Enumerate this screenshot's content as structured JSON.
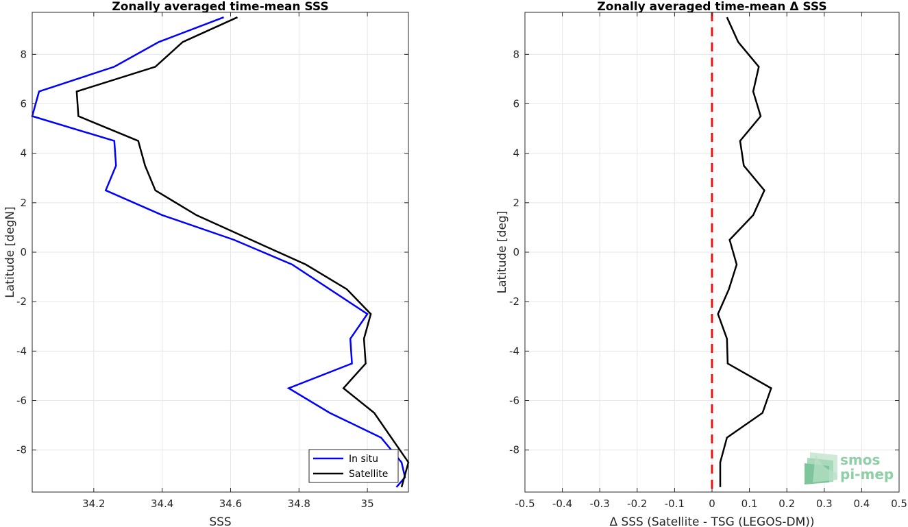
{
  "chart_data": [
    {
      "type": "line",
      "title": "Zonally averaged time-mean SSS",
      "xlabel": "SSS",
      "ylabel": "Latitude [degN]",
      "xlim": [
        34.02,
        35.12
      ],
      "ylim": [
        -9.7,
        9.7
      ],
      "xticks": [
        34.2,
        34.4,
        34.6,
        34.8,
        35
      ],
      "xtick_labels": [
        "34.2",
        "34.4",
        "34.6",
        "34.8",
        "35"
      ],
      "yticks": [
        -8,
        -6,
        -4,
        -2,
        0,
        2,
        4,
        6,
        8
      ],
      "ytick_labels": [
        "-8",
        "-6",
        "-4",
        "-2",
        "0",
        "2",
        "4",
        "6",
        "8"
      ],
      "grid": true,
      "legend_position": "bottom-right",
      "series": [
        {
          "name": "In situ",
          "color": "#0000ff",
          "points": [
            [
              34.58,
              9.5
            ],
            [
              34.39,
              8.5
            ],
            [
              34.26,
              7.5
            ],
            [
              34.04,
              6.5
            ],
            [
              34.02,
              5.5
            ],
            [
              34.26,
              4.5
            ],
            [
              34.265,
              3.5
            ],
            [
              34.235,
              2.5
            ],
            [
              34.4,
              1.5
            ],
            [
              34.61,
              0.5
            ],
            [
              34.78,
              -0.5
            ],
            [
              34.89,
              -1.5
            ],
            [
              35.0,
              -2.5
            ],
            [
              34.95,
              -3.5
            ],
            [
              34.955,
              -4.5
            ],
            [
              34.77,
              -5.5
            ],
            [
              34.89,
              -6.5
            ],
            [
              35.04,
              -7.5
            ],
            [
              35.1,
              -8.5
            ],
            [
              35.11,
              -9.1
            ],
            [
              35.085,
              -9.5
            ]
          ]
        },
        {
          "name": "Satellite",
          "color": "#000000",
          "points": [
            [
              34.62,
              9.5
            ],
            [
              34.46,
              8.5
            ],
            [
              34.38,
              7.5
            ],
            [
              34.15,
              6.5
            ],
            [
              34.155,
              5.5
            ],
            [
              34.33,
              4.5
            ],
            [
              34.35,
              3.5
            ],
            [
              34.38,
              2.5
            ],
            [
              34.5,
              1.5
            ],
            [
              34.66,
              0.5
            ],
            [
              34.82,
              -0.5
            ],
            [
              34.94,
              -1.5
            ],
            [
              35.01,
              -2.5
            ],
            [
              34.99,
              -3.5
            ],
            [
              34.995,
              -4.5
            ],
            [
              34.93,
              -5.5
            ],
            [
              35.02,
              -6.5
            ],
            [
              35.07,
              -7.5
            ],
            [
              35.12,
              -8.5
            ],
            [
              35.1,
              -9.5
            ]
          ]
        }
      ]
    },
    {
      "type": "line",
      "title": "Zonally averaged time-mean Δ SSS",
      "xlabel": "Δ SSS (Satellite - TSG (LEGOS-DM))",
      "ylabel": "Latitude [deg]",
      "xlim": [
        -0.5,
        0.5
      ],
      "ylim": [
        -9.7,
        9.7
      ],
      "xticks": [
        -0.5,
        -0.4,
        -0.3,
        -0.2,
        -0.1,
        0,
        0.1,
        0.2,
        0.3,
        0.4,
        0.5
      ],
      "xtick_labels": [
        "-0.5",
        "-0.4",
        "-0.3",
        "-0.2",
        "-0.1",
        "0",
        "0.1",
        "0.2",
        "0.3",
        "0.4",
        "0.5"
      ],
      "yticks": [
        -8,
        -6,
        -4,
        -2,
        0,
        2,
        4,
        6,
        8
      ],
      "ytick_labels": [
        "-8",
        "-6",
        "-4",
        "-2",
        "0",
        "2",
        "4",
        "6",
        "8"
      ],
      "grid": true,
      "reference_line": {
        "x": 0,
        "color": "#ee1111",
        "style": "dashed"
      },
      "series": [
        {
          "color": "#000000",
          "points": [
            [
              0.04,
              9.5
            ],
            [
              0.07,
              8.5
            ],
            [
              0.125,
              7.5
            ],
            [
              0.11,
              6.5
            ],
            [
              0.13,
              5.5
            ],
            [
              0.075,
              4.5
            ],
            [
              0.085,
              3.5
            ],
            [
              0.14,
              2.5
            ],
            [
              0.11,
              1.5
            ],
            [
              0.047,
              0.5
            ],
            [
              0.066,
              -0.5
            ],
            [
              0.045,
              -1.5
            ],
            [
              0.016,
              -2.5
            ],
            [
              0.04,
              -3.5
            ],
            [
              0.042,
              -4.5
            ],
            [
              0.158,
              -5.5
            ],
            [
              0.135,
              -6.5
            ],
            [
              0.04,
              -7.5
            ],
            [
              0.022,
              -8.5
            ],
            [
              0.022,
              -9.5
            ]
          ]
        }
      ]
    }
  ],
  "logo": {
    "line1": "smos",
    "line2": "pi-mep"
  }
}
